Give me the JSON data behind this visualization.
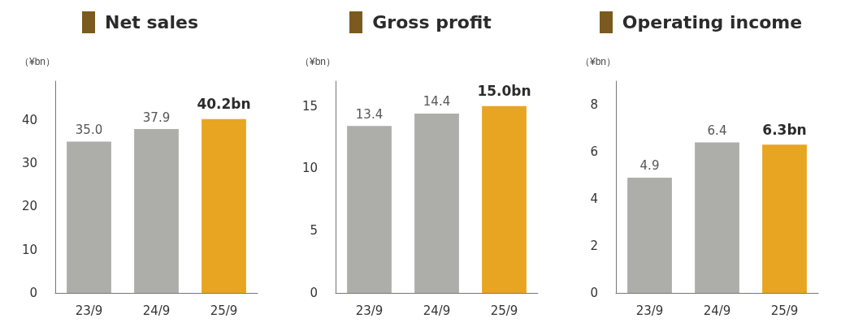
{
  "chart_data": [
    {
      "type": "bar",
      "title": "Net sales",
      "ylabel": "（¥bn）",
      "categories": [
        "23/9",
        "24/9",
        "25/9"
      ],
      "values": [
        35.0,
        37.9,
        40.2
      ],
      "colors": [
        "#adadaa",
        "#adadaa",
        "#e8a521"
      ],
      "value_labels": [
        "35.0",
        "37.9",
        "40.2bn"
      ],
      "ylim": [
        0,
        49
      ],
      "yticks": [
        0,
        10,
        20,
        30,
        40
      ],
      "grid": false
    },
    {
      "type": "bar",
      "title": "Gross profit",
      "ylabel": "（¥bn）",
      "categories": [
        "23/9",
        "24/9",
        "25/9"
      ],
      "values": [
        13.4,
        14.4,
        15.0
      ],
      "colors": [
        "#adadaa",
        "#adadaa",
        "#e8a521"
      ],
      "value_labels": [
        "13.4",
        "14.4",
        "15.0bn"
      ],
      "ylim": [
        0,
        17
      ],
      "yticks": [
        0,
        5,
        10,
        15
      ],
      "grid": false
    },
    {
      "type": "bar",
      "title": "Operating income",
      "ylabel": "（¥bn）",
      "categories": [
        "23/9",
        "24/9",
        "25/9"
      ],
      "values": [
        4.9,
        6.4,
        6.3
      ],
      "colors": [
        "#adadaa",
        "#adadaa",
        "#e8a521"
      ],
      "value_labels": [
        "4.9",
        "6.4",
        "6.3bn"
      ],
      "ylim": [
        0,
        9
      ],
      "yticks": [
        0,
        2,
        4,
        6,
        8
      ],
      "grid": false
    }
  ]
}
